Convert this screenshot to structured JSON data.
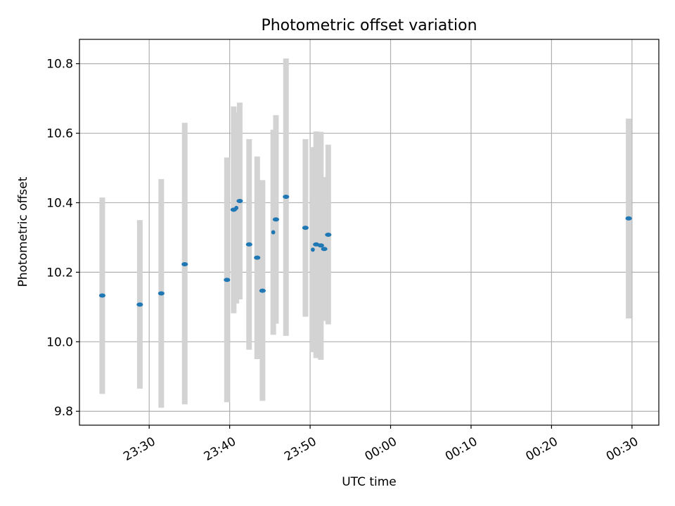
{
  "chart_data": {
    "type": "scatter",
    "title": "Photometric offset variation",
    "xlabel": "UTC time",
    "ylabel": "Photometric offset",
    "x_unit": "UTC time",
    "xlim": [
      "23:21:20",
      "00:33:20"
    ],
    "ylim": [
      9.76,
      10.87
    ],
    "x_ticks": [
      "23:30",
      "23:40",
      "23:50",
      "00:00",
      "00:10",
      "00:20",
      "00:30"
    ],
    "y_ticks": [
      "9.8",
      "10.0",
      "10.2",
      "10.4",
      "10.6",
      "10.8"
    ],
    "y_tick_values": [
      9.8,
      10.0,
      10.2,
      10.4,
      10.6,
      10.8
    ],
    "grid": true,
    "colors": {
      "marker": "#1f77b4",
      "error_bar": "#d3d3d3",
      "grid": "#b0b0b0"
    },
    "points": [
      {
        "t": "23:24:10",
        "y": 10.133,
        "lo": 9.85,
        "hi": 10.415,
        "w": 0.8
      },
      {
        "t": "23:28:50",
        "y": 10.107,
        "lo": 9.865,
        "hi": 10.35,
        "w": 0.8
      },
      {
        "t": "23:31:30",
        "y": 10.139,
        "lo": 9.81,
        "hi": 10.468,
        "w": 0.8
      },
      {
        "t": "23:34:25",
        "y": 10.223,
        "lo": 9.82,
        "hi": 10.63,
        "w": 0.8
      },
      {
        "t": "23:39:40",
        "y": 10.178,
        "lo": 9.826,
        "hi": 10.53,
        "w": 0.8
      },
      {
        "t": "23:40:30",
        "y": 10.38,
        "lo": 10.082,
        "hi": 10.677,
        "w": 0.8
      },
      {
        "t": "23:40:50",
        "y": 10.385,
        "lo": 10.11,
        "hi": 10.66,
        "w": 0.5
      },
      {
        "t": "23:41:15",
        "y": 10.405,
        "lo": 10.122,
        "hi": 10.688,
        "w": 0.8
      },
      {
        "t": "23:42:25",
        "y": 10.28,
        "lo": 9.977,
        "hi": 10.583,
        "w": 0.8
      },
      {
        "t": "23:43:25",
        "y": 10.242,
        "lo": 9.95,
        "hi": 10.533,
        "w": 0.8
      },
      {
        "t": "23:44:05",
        "y": 10.147,
        "lo": 9.83,
        "hi": 10.465,
        "w": 0.8
      },
      {
        "t": "23:45:25",
        "y": 10.315,
        "lo": 10.02,
        "hi": 10.61,
        "w": 0.5
      },
      {
        "t": "23:45:45",
        "y": 10.352,
        "lo": 10.052,
        "hi": 10.652,
        "w": 0.8
      },
      {
        "t": "23:47:00",
        "y": 10.417,
        "lo": 10.017,
        "hi": 10.815,
        "w": 0.8
      },
      {
        "t": "23:49:25",
        "y": 10.328,
        "lo": 10.072,
        "hi": 10.583,
        "w": 0.8
      },
      {
        "t": "23:50:20",
        "y": 10.265,
        "lo": 9.97,
        "hi": 10.56,
        "w": 0.5
      },
      {
        "t": "23:50:45",
        "y": 10.28,
        "lo": 9.953,
        "hi": 10.605,
        "w": 0.8
      },
      {
        "t": "23:51:20",
        "y": 10.277,
        "lo": 9.948,
        "hi": 10.604,
        "w": 0.8
      },
      {
        "t": "23:51:45",
        "y": 10.267,
        "lo": 10.06,
        "hi": 10.474,
        "w": 0.8
      },
      {
        "t": "23:52:15",
        "y": 10.308,
        "lo": 10.05,
        "hi": 10.567,
        "w": 0.8
      },
      {
        "t": "00:29:35",
        "y": 10.355,
        "lo": 10.067,
        "hi": 10.642,
        "w": 0.8
      }
    ]
  }
}
